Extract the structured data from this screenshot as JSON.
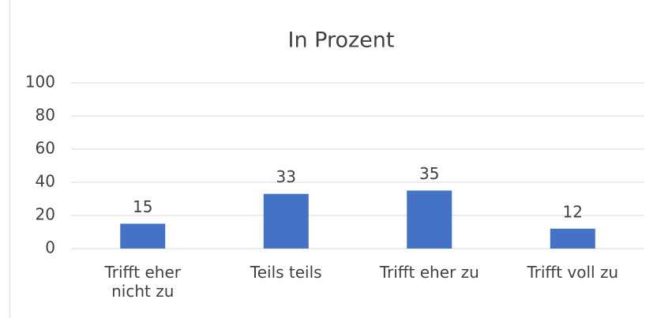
{
  "chart_data": {
    "type": "bar",
    "title": "In Prozent",
    "categories": [
      "Trifft eher nicht zu",
      "Teils teils",
      "Trifft eher zu",
      "Trifft voll zu"
    ],
    "values": [
      15,
      33,
      35,
      12
    ],
    "color": "#4472c4",
    "ylim": [
      0,
      100
    ],
    "yticks": [
      0,
      20,
      40,
      60,
      80,
      100
    ],
    "grid": true
  }
}
